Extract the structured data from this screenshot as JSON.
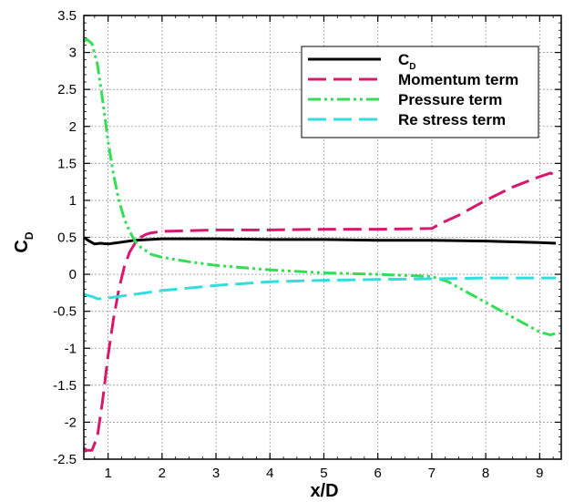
{
  "chart_data": {
    "type": "line",
    "xlabel": "x/D",
    "ylabel": "C",
    "ylabel_sub": "D",
    "xlim": [
      0.55,
      9.4
    ],
    "ylim": [
      -2.5,
      3.5
    ],
    "xticks": [
      1,
      2,
      3,
      4,
      5,
      6,
      7,
      8,
      9
    ],
    "yticks": [
      -2.5,
      -2,
      -1.5,
      -1,
      -0.5,
      0,
      0.5,
      1,
      1.5,
      2,
      2.5,
      3,
      3.5
    ],
    "grid": true,
    "legend_position": "top-right",
    "series": [
      {
        "name": "C",
        "name_sub": "D",
        "color": "#000000",
        "style": "solid",
        "x": [
          0.55,
          0.65,
          0.75,
          0.85,
          1.0,
          1.2,
          1.5,
          2.0,
          3.0,
          4.0,
          5.0,
          6.0,
          7.0,
          8.0,
          9.0,
          9.3
        ],
        "y": [
          0.5,
          0.45,
          0.41,
          0.42,
          0.41,
          0.43,
          0.46,
          0.48,
          0.48,
          0.47,
          0.47,
          0.46,
          0.46,
          0.45,
          0.43,
          0.42
        ]
      },
      {
        "name": "Momentum term",
        "color": "#d6196e",
        "style": "dash",
        "x": [
          0.55,
          0.6,
          0.7,
          0.8,
          0.9,
          1.0,
          1.1,
          1.2,
          1.3,
          1.4,
          1.5,
          1.6,
          1.7,
          1.8,
          2.0,
          2.5,
          3.0,
          4.0,
          5.0,
          6.0,
          7.0,
          7.2,
          7.5,
          8.0,
          8.5,
          9.0,
          9.2,
          9.3
        ],
        "y": [
          -2.35,
          -2.38,
          -2.38,
          -2.2,
          -1.7,
          -1.1,
          -0.6,
          -0.2,
          0.1,
          0.3,
          0.42,
          0.5,
          0.54,
          0.56,
          0.58,
          0.59,
          0.6,
          0.6,
          0.61,
          0.61,
          0.62,
          0.7,
          0.8,
          1.0,
          1.18,
          1.32,
          1.37,
          1.33
        ]
      },
      {
        "name": "Pressure term",
        "color": "#33dd55",
        "style": "dashdotdot",
        "x": [
          0.55,
          0.6,
          0.7,
          0.8,
          0.9,
          1.0,
          1.1,
          1.2,
          1.3,
          1.4,
          1.5,
          1.6,
          1.7,
          1.8,
          2.0,
          2.5,
          3.0,
          4.0,
          5.0,
          6.0,
          7.0,
          7.3,
          7.5,
          8.0,
          8.5,
          9.0,
          9.2,
          9.3
        ],
        "y": [
          3.15,
          3.18,
          3.12,
          2.85,
          2.35,
          1.8,
          1.35,
          1.0,
          0.75,
          0.58,
          0.45,
          0.37,
          0.32,
          0.27,
          0.23,
          0.17,
          0.12,
          0.06,
          0.02,
          0.0,
          -0.03,
          -0.1,
          -0.18,
          -0.38,
          -0.58,
          -0.78,
          -0.82,
          -0.8
        ]
      },
      {
        "name": "Re stress term",
        "color": "#33dddd",
        "style": "dash",
        "x": [
          0.55,
          0.7,
          0.8,
          0.9,
          1.0,
          1.5,
          2.0,
          3.0,
          4.0,
          5.0,
          6.0,
          7.0,
          8.0,
          9.0,
          9.3
        ],
        "y": [
          -0.27,
          -0.3,
          -0.33,
          -0.33,
          -0.32,
          -0.27,
          -0.22,
          -0.15,
          -0.1,
          -0.08,
          -0.07,
          -0.06,
          -0.05,
          -0.05,
          -0.05
        ]
      }
    ]
  }
}
